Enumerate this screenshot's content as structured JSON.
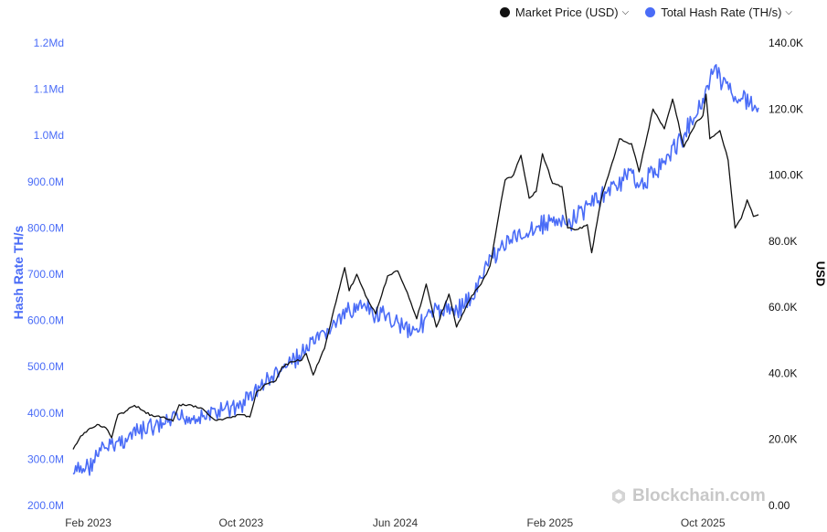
{
  "legend": {
    "price_label": "Market Price (USD)",
    "hashrate_label": "Total Hash Rate (TH/s)"
  },
  "watermark": "Blockchain.com",
  "colors": {
    "price": "#111111",
    "hashrate": "#4a6cf7",
    "grid": "#e6e6e6"
  },
  "chart_data": {
    "type": "line",
    "xlabel": "",
    "ylabel_left": "Hash Rate TH/s",
    "ylabel_right": "USD",
    "x_ticks": [
      "Feb 2023",
      "Oct 2023",
      "Jun 2024",
      "Feb 2025",
      "Oct 2025"
    ],
    "y_left_ticks": [
      "200.0M",
      "300.0M",
      "400.0M",
      "500.0M",
      "600.0M",
      "700.0M",
      "800.0M",
      "900.0M",
      "1.0Md",
      "1.1Md",
      "1.2Md"
    ],
    "y_right_ticks": [
      "0.00",
      "20.0K",
      "40.0K",
      "60.0K",
      "80.0K",
      "100.0K",
      "120.0K",
      "140.0K"
    ],
    "ylim_left": [
      200000000,
      1200000000
    ],
    "ylim_right": [
      0,
      140000
    ],
    "grid": false,
    "legend_position": "top-right",
    "series": [
      {
        "name": "Market Price (USD)",
        "axis": "right",
        "points": [
          [
            "2023-01-08",
            17000
          ],
          [
            "2023-01-20",
            21000
          ],
          [
            "2023-02-01",
            23000
          ],
          [
            "2023-02-15",
            24500
          ],
          [
            "2023-03-01",
            23500
          ],
          [
            "2023-03-10",
            20500
          ],
          [
            "2023-03-20",
            27500
          ],
          [
            "2023-04-01",
            28500
          ],
          [
            "2023-04-15",
            30300
          ],
          [
            "2023-05-01",
            28500
          ],
          [
            "2023-05-15",
            27000
          ],
          [
            "2023-06-01",
            26800
          ],
          [
            "2023-06-15",
            25500
          ],
          [
            "2023-06-25",
            30500
          ],
          [
            "2023-07-15",
            30300
          ],
          [
            "2023-08-01",
            29300
          ],
          [
            "2023-08-18",
            26200
          ],
          [
            "2023-09-01",
            25900
          ],
          [
            "2023-09-15",
            26600
          ],
          [
            "2023-10-01",
            27500
          ],
          [
            "2023-10-15",
            26800
          ],
          [
            "2023-10-25",
            34200
          ],
          [
            "2023-11-10",
            36800
          ],
          [
            "2023-11-25",
            37800
          ],
          [
            "2023-12-05",
            42000
          ],
          [
            "2023-12-20",
            43500
          ],
          [
            "2024-01-05",
            44000
          ],
          [
            "2024-01-12",
            46000
          ],
          [
            "2024-01-23",
            39500
          ],
          [
            "2024-02-10",
            47500
          ],
          [
            "2024-02-28",
            61500
          ],
          [
            "2024-03-13",
            72000
          ],
          [
            "2024-03-20",
            65000
          ],
          [
            "2024-04-01",
            70000
          ],
          [
            "2024-04-15",
            63500
          ],
          [
            "2024-05-01",
            58000
          ],
          [
            "2024-05-20",
            69500
          ],
          [
            "2024-06-05",
            71000
          ],
          [
            "2024-06-20",
            64500
          ],
          [
            "2024-07-05",
            56500
          ],
          [
            "2024-07-20",
            67000
          ],
          [
            "2024-08-05",
            54000
          ],
          [
            "2024-08-25",
            64000
          ],
          [
            "2024-09-06",
            54000
          ],
          [
            "2024-09-30",
            63500
          ],
          [
            "2024-10-15",
            67000
          ],
          [
            "2024-10-29",
            72500
          ],
          [
            "2024-11-12",
            88000
          ],
          [
            "2024-11-22",
            98500
          ],
          [
            "2024-12-05",
            100000
          ],
          [
            "2024-12-17",
            106000
          ],
          [
            "2024-12-30",
            93000
          ],
          [
            "2025-01-10",
            95000
          ],
          [
            "2025-01-20",
            106500
          ],
          [
            "2025-02-05",
            97500
          ],
          [
            "2025-02-20",
            96500
          ],
          [
            "2025-03-01",
            84000
          ],
          [
            "2025-03-15",
            83500
          ],
          [
            "2025-04-01",
            85000
          ],
          [
            "2025-04-08",
            76500
          ],
          [
            "2025-04-25",
            94500
          ],
          [
            "2025-05-10",
            103500
          ],
          [
            "2025-05-22",
            111000
          ],
          [
            "2025-06-10",
            109500
          ],
          [
            "2025-06-22",
            101000
          ],
          [
            "2025-07-14",
            120000
          ],
          [
            "2025-08-01",
            114000
          ],
          [
            "2025-08-14",
            123000
          ],
          [
            "2025-09-01",
            108500
          ],
          [
            "2025-09-20",
            116000
          ],
          [
            "2025-10-01",
            118000
          ],
          [
            "2025-10-06",
            124500
          ],
          [
            "2025-10-12",
            111000
          ],
          [
            "2025-10-28",
            113500
          ],
          [
            "2025-11-10",
            104500
          ],
          [
            "2025-11-21",
            84000
          ],
          [
            "2025-12-01",
            87000
          ],
          [
            "2025-12-10",
            92500
          ],
          [
            "2025-12-20",
            87500
          ],
          [
            "2025-12-28",
            88000
          ]
        ]
      },
      {
        "name": "Total Hash Rate (TH/s)",
        "axis": "left",
        "points": [
          [
            "2023-01-08",
            268000000
          ],
          [
            "2023-02-01",
            285000000
          ],
          [
            "2023-03-01",
            325000000
          ],
          [
            "2023-04-01",
            345000000
          ],
          [
            "2023-05-01",
            362000000
          ],
          [
            "2023-06-01",
            375000000
          ],
          [
            "2023-07-01",
            390000000
          ],
          [
            "2023-08-01",
            392000000
          ],
          [
            "2023-09-01",
            405000000
          ],
          [
            "2023-10-01",
            418000000
          ],
          [
            "2023-11-01",
            458000000
          ],
          [
            "2023-12-01",
            490000000
          ],
          [
            "2024-01-01",
            525000000
          ],
          [
            "2024-02-01",
            558000000
          ],
          [
            "2024-03-01",
            598000000
          ],
          [
            "2024-04-01",
            635000000
          ],
          [
            "2024-05-01",
            610000000
          ],
          [
            "2024-06-01",
            600000000
          ],
          [
            "2024-07-01",
            580000000
          ],
          [
            "2024-08-01",
            618000000
          ],
          [
            "2024-09-01",
            625000000
          ],
          [
            "2024-10-01",
            648000000
          ],
          [
            "2024-11-01",
            740000000
          ],
          [
            "2024-12-01",
            775000000
          ],
          [
            "2025-01-01",
            795000000
          ],
          [
            "2025-02-01",
            815000000
          ],
          [
            "2025-03-01",
            805000000
          ],
          [
            "2025-04-01",
            850000000
          ],
          [
            "2025-05-01",
            875000000
          ],
          [
            "2025-06-01",
            915000000
          ],
          [
            "2025-07-01",
            898000000
          ],
          [
            "2025-08-01",
            945000000
          ],
          [
            "2025-09-01",
            1000000000
          ],
          [
            "2025-10-01",
            1080000000
          ],
          [
            "2025-10-20",
            1150000000
          ],
          [
            "2025-11-01",
            1110000000
          ],
          [
            "2025-12-01",
            1080000000
          ],
          [
            "2025-12-28",
            1060000000
          ]
        ]
      }
    ]
  }
}
